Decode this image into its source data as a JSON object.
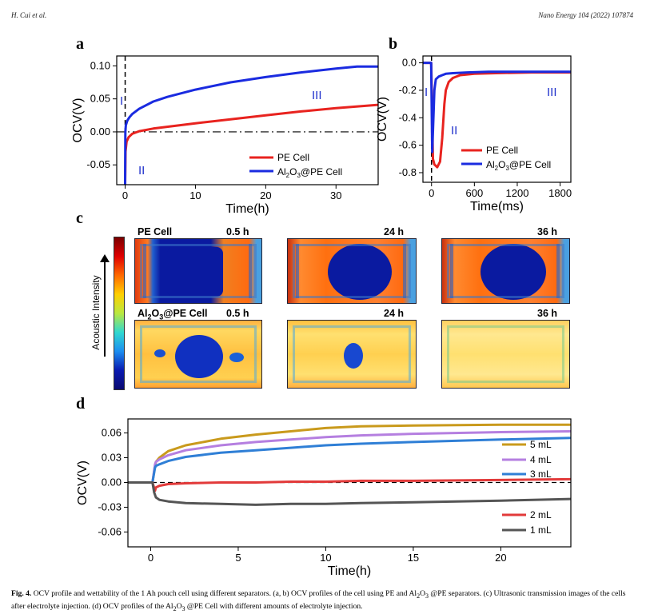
{
  "header": {
    "left": "H. Cui et al.",
    "right": "Nano Energy 104 (2022) 107874"
  },
  "panel_labels": {
    "a": "a",
    "b": "b",
    "c": "c",
    "d": "d"
  },
  "chart_data": [
    {
      "id": "a",
      "type": "line",
      "xlabel": "Time(h)",
      "ylabel": "OCV(V)",
      "xlim": [
        -1.2,
        36
      ],
      "ylim": [
        -0.08,
        0.115
      ],
      "xticks": [
        0,
        10,
        20,
        30
      ],
      "yticks": [
        -0.05,
        0.0,
        0.05,
        0.1
      ],
      "xtick_labels": [
        "0",
        "10",
        "20",
        "30"
      ],
      "ytick_labels": [
        "-0.05",
        "0.00",
        "0.05",
        "0.10"
      ],
      "regions": [
        "I",
        "II",
        "III"
      ],
      "series": [
        {
          "name": "PE Cell",
          "color": "#e8231f",
          "x": [
            0,
            0.05,
            0.2,
            0.5,
            1,
            2,
            4,
            7,
            10,
            15,
            20,
            25,
            30,
            36
          ],
          "y": [
            -0.08,
            -0.03,
            -0.015,
            -0.008,
            -0.003,
            0.001,
            0.005,
            0.009,
            0.013,
            0.019,
            0.025,
            0.031,
            0.036,
            0.041
          ]
        },
        {
          "name": "Al2O3@PE Cell",
          "color": "#1a2be0",
          "x": [
            0,
            0.03,
            0.1,
            0.3,
            0.6,
            1,
            2,
            4,
            6,
            10,
            15,
            20,
            25,
            30,
            33,
            36
          ],
          "y": [
            -0.08,
            0.0,
            0.01,
            0.017,
            0.022,
            0.027,
            0.035,
            0.046,
            0.053,
            0.064,
            0.075,
            0.083,
            0.09,
            0.096,
            0.099,
            0.099
          ]
        }
      ]
    },
    {
      "id": "b",
      "type": "line",
      "xlabel": "Time(ms)",
      "ylabel": "OCV(V)",
      "xlim": [
        -120,
        1950
      ],
      "ylim": [
        -0.87,
        0.05
      ],
      "xticks": [
        0,
        600,
        1200,
        1800
      ],
      "yticks": [
        0.0,
        -0.2,
        -0.4,
        -0.6,
        -0.8
      ],
      "xtick_labels": [
        "0",
        "600",
        "1200",
        "1800"
      ],
      "ytick_labels": [
        "0.0",
        "-0.2",
        "-0.4",
        "-0.6",
        "-0.8"
      ],
      "regions": [
        "I",
        "II",
        "III"
      ],
      "series": [
        {
          "name": "PE Cell",
          "color": "#e8231f",
          "x": [
            -120,
            -5,
            0,
            20,
            40,
            80,
            120,
            150,
            180,
            200,
            240,
            300,
            400,
            600,
            900,
            1400,
            1950
          ],
          "y": [
            0.0,
            0.0,
            -0.1,
            -0.7,
            -0.74,
            -0.76,
            -0.72,
            -0.55,
            -0.3,
            -0.2,
            -0.14,
            -0.11,
            -0.09,
            -0.08,
            -0.075,
            -0.07,
            -0.07
          ]
        },
        {
          "name": "Al2O3@PE Cell",
          "color": "#1a2be0",
          "x": [
            -120,
            -5,
            0,
            10,
            20,
            40,
            60,
            100,
            150,
            200,
            300,
            500,
            800,
            1200,
            1950
          ],
          "y": [
            0.0,
            0.0,
            -0.2,
            -0.65,
            -0.5,
            -0.2,
            -0.12,
            -0.1,
            -0.09,
            -0.08,
            -0.075,
            -0.07,
            -0.065,
            -0.065,
            -0.065
          ]
        }
      ]
    },
    {
      "id": "d",
      "type": "line",
      "xlabel": "Time(h)",
      "ylabel": "OCV(V)",
      "xlim": [
        -1.3,
        24
      ],
      "ylim": [
        -0.078,
        0.077
      ],
      "xticks": [
        0,
        5,
        10,
        15,
        20
      ],
      "yticks": [
        -0.06,
        -0.03,
        0.0,
        0.03,
        0.06
      ],
      "xtick_labels": [
        "0",
        "5",
        "10",
        "15",
        "20"
      ],
      "ytick_labels": [
        "-0.06",
        "-0.03",
        "0.00",
        "0.03",
        "0.06"
      ],
      "series": [
        {
          "name": "5 mL",
          "color": "#c99a1c",
          "x": [
            -1.3,
            0.1,
            0.25,
            0.3,
            0.5,
            1,
            2,
            4,
            6,
            8,
            10,
            12,
            15,
            20,
            24
          ],
          "y": [
            0,
            0,
            0.02,
            0.025,
            0.03,
            0.038,
            0.045,
            0.053,
            0.058,
            0.062,
            0.066,
            0.068,
            0.069,
            0.07,
            0.07
          ]
        },
        {
          "name": "4 mL",
          "color": "#b57fe0",
          "x": [
            -1.3,
            0.1,
            0.25,
            0.3,
            0.5,
            1,
            2,
            4,
            6,
            8,
            10,
            12,
            15,
            20,
            24
          ],
          "y": [
            0,
            0,
            0.022,
            0.025,
            0.028,
            0.033,
            0.039,
            0.045,
            0.049,
            0.052,
            0.055,
            0.057,
            0.059,
            0.061,
            0.062
          ]
        },
        {
          "name": "3 mL",
          "color": "#2f7fd6",
          "x": [
            -1.3,
            0.1,
            0.25,
            0.3,
            0.5,
            1,
            2,
            4,
            6,
            8,
            10,
            12,
            15,
            20,
            24
          ],
          "y": [
            0,
            0,
            0.018,
            0.02,
            0.022,
            0.026,
            0.031,
            0.036,
            0.039,
            0.042,
            0.045,
            0.047,
            0.049,
            0.052,
            0.054
          ]
        },
        {
          "name": "2 mL",
          "color": "#e23a3a",
          "x": [
            -1.3,
            0.1,
            0.25,
            0.3,
            0.5,
            1,
            2,
            4,
            6,
            8,
            10,
            12,
            15,
            20,
            24
          ],
          "y": [
            0,
            0,
            -0.01,
            -0.006,
            -0.004,
            -0.002,
            -0.001,
            0.0,
            0.0,
            0.001,
            0.001,
            0.002,
            0.002,
            0.003,
            0.004
          ]
        },
        {
          "name": "1 mL",
          "color": "#555555",
          "x": [
            -1.3,
            0.1,
            0.2,
            0.3,
            0.5,
            1,
            2,
            4,
            6,
            8,
            10,
            12,
            15,
            20,
            24
          ],
          "y": [
            0,
            0,
            -0.012,
            -0.018,
            -0.021,
            -0.023,
            -0.025,
            -0.026,
            -0.027,
            -0.026,
            -0.026,
            -0.025,
            -0.024,
            -0.022,
            -0.02
          ]
        }
      ]
    }
  ],
  "panel_c": {
    "colorbar_label": "Acoustic Intensity",
    "row1_label": "PE Cell",
    "row2_label_main": "Al",
    "row2_label_sub1": "2",
    "row2_label_mid": "O",
    "row2_label_sub2": "3",
    "row2_label_tail": "@PE Cell",
    "time_labels": [
      "0.5 h",
      "24 h",
      "36 h"
    ]
  },
  "legend_a": {
    "pe": "PE Cell",
    "al_main": "Al",
    "al_sub1": "2",
    "al_mid": "O",
    "al_sub2": "3",
    "al_tail": "@PE Cell"
  },
  "caption": {
    "fig": "Fig. 4.",
    "text1": "OCV profile and wettability of the 1 Ah pouch cell using different separators. (a, b) OCV profiles of the cell using PE and Al",
    "sub1": "2",
    "text2": "O",
    "sub2": "3",
    "text3": " @PE separators. (c) Ultrasonic transmission images of the cells after electrolyte injection. (d) OCV profiles of the Al",
    "sub3": "2",
    "text4": "O",
    "sub4": "3",
    "text5": " @PE Cell with different amounts of electrolyte injection."
  }
}
